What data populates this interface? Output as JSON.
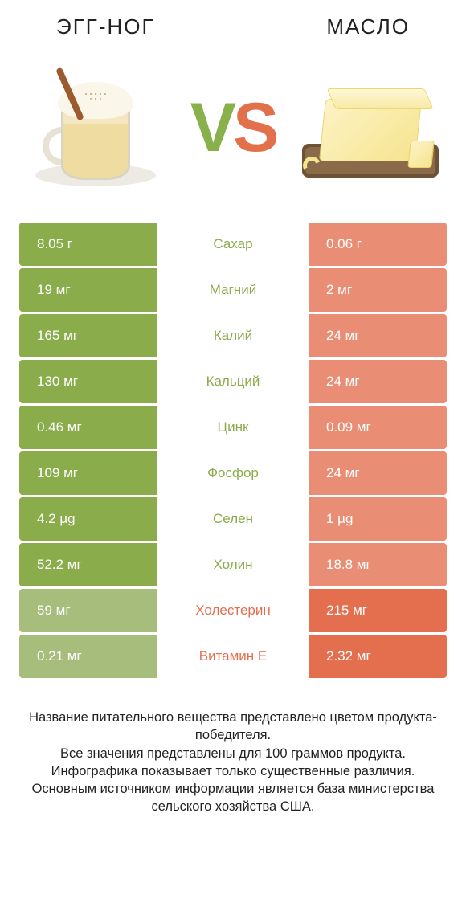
{
  "colors": {
    "green": "#8bac4b",
    "green_weak": "#a7bd7b",
    "orange": "#e46f4e",
    "orange_weak": "#e98e74"
  },
  "left": {
    "title": "ЭГГ-НОГ"
  },
  "right": {
    "title": "МАСЛО"
  },
  "vs": {
    "v": "V",
    "s": "S"
  },
  "rows": [
    {
      "nutrient": "Сахар",
      "left_val": "8.05 г",
      "right_val": "0.06 г",
      "winner": "left"
    },
    {
      "nutrient": "Магний",
      "left_val": "19 мг",
      "right_val": "2 мг",
      "winner": "left"
    },
    {
      "nutrient": "Калий",
      "left_val": "165 мг",
      "right_val": "24 мг",
      "winner": "left"
    },
    {
      "nutrient": "Кальций",
      "left_val": "130 мг",
      "right_val": "24 мг",
      "winner": "left"
    },
    {
      "nutrient": "Цинк",
      "left_val": "0.46 мг",
      "right_val": "0.09 мг",
      "winner": "left"
    },
    {
      "nutrient": "Фосфор",
      "left_val": "109 мг",
      "right_val": "24 мг",
      "winner": "left"
    },
    {
      "nutrient": "Селен",
      "left_val": "4.2 µg",
      "right_val": "1 µg",
      "winner": "left"
    },
    {
      "nutrient": "Холин",
      "left_val": "52.2 мг",
      "right_val": "18.8 мг",
      "winner": "left"
    },
    {
      "nutrient": "Холестерин",
      "left_val": "59 мг",
      "right_val": "215 мг",
      "winner": "right"
    },
    {
      "nutrient": "Витамин E",
      "left_val": "0.21 мг",
      "right_val": "2.32 мг",
      "winner": "right"
    }
  ],
  "footnote": "Название питательного вещества представлено цветом продукта-победителя.\nВсе значения представлены для 100 граммов продукта.\nИнфографика показывает только существенные различия.\nОсновным источником информации является база министерства сельского хозяйства США."
}
